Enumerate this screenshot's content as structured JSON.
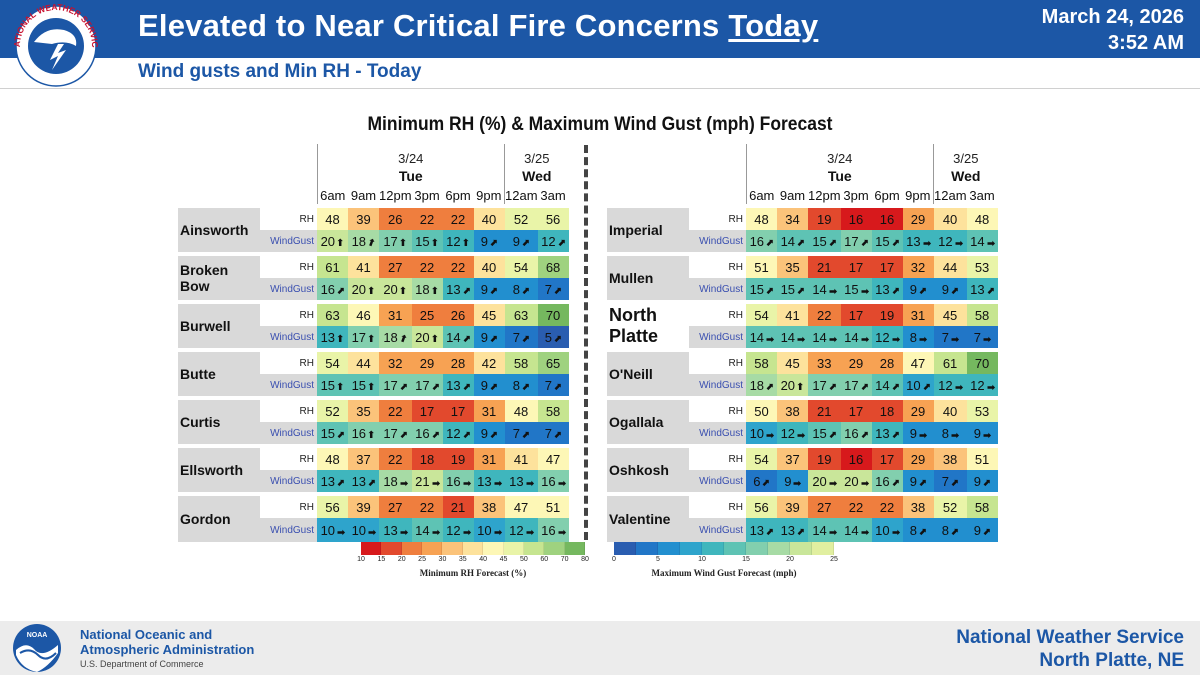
{
  "header": {
    "title_main": "Elevated to Near Critical Fire Concerns",
    "title_emph": "Today",
    "date": "March 24, 2026",
    "time": "3:52 AM",
    "subtitle": "Wind gusts and Min RH - Today",
    "logo_text": "NATIONAL WEATHER SERVICE"
  },
  "chart_title": "Minimum RH (%) & Maximum Wind Gust (mph) Forecast",
  "columns": {
    "date1": "3/24",
    "day1": "Tue",
    "date2": "3/25",
    "day2": "Wed",
    "times": [
      "6am",
      "9am",
      "12pm",
      "3pm",
      "6pm",
      "9pm",
      "12am",
      "3am"
    ]
  },
  "row_labels": {
    "rh": "RH",
    "gust": "WindGust"
  },
  "chart_data": {
    "type": "table",
    "rh_units": "%",
    "gust_units": "mph",
    "left": [
      {
        "station": "Ainsworth",
        "rh": [
          48,
          39,
          26,
          22,
          22,
          40,
          52,
          56
        ],
        "gust": [
          20,
          18,
          17,
          15,
          12,
          9,
          9,
          12
        ],
        "dir": [
          "S",
          "SSW",
          "S",
          "S",
          "S",
          "SW",
          "SW",
          "SW"
        ]
      },
      {
        "station": "Broken Bow",
        "rh": [
          61,
          41,
          27,
          22,
          22,
          40,
          54,
          68
        ],
        "gust": [
          16,
          20,
          20,
          18,
          13,
          9,
          8,
          7
        ],
        "dir": [
          "SW",
          "S",
          "S",
          "S",
          "SW",
          "SW",
          "SW",
          "SW"
        ]
      },
      {
        "station": "Burwell",
        "rh": [
          63,
          46,
          31,
          25,
          26,
          45,
          63,
          70
        ],
        "gust": [
          13,
          17,
          18,
          20,
          14,
          9,
          7,
          5
        ],
        "dir": [
          "S",
          "S",
          "SSW",
          "S",
          "SW",
          "SW",
          "SW",
          "SW"
        ]
      },
      {
        "station": "Butte",
        "rh": [
          54,
          44,
          32,
          29,
          28,
          42,
          58,
          65
        ],
        "gust": [
          15,
          15,
          17,
          17,
          13,
          9,
          8,
          7
        ],
        "dir": [
          "S",
          "S",
          "SW",
          "SW",
          "SW",
          "SW",
          "SW",
          "SW"
        ]
      },
      {
        "station": "Curtis",
        "rh": [
          52,
          35,
          22,
          17,
          17,
          31,
          48,
          58
        ],
        "gust": [
          15,
          16,
          17,
          16,
          12,
          9,
          7,
          7
        ],
        "dir": [
          "SW",
          "S",
          "SW",
          "SW",
          "SW",
          "SW",
          "SW",
          "SW"
        ]
      },
      {
        "station": "Ellsworth",
        "rh": [
          48,
          37,
          22,
          18,
          19,
          31,
          41,
          47
        ],
        "gust": [
          13,
          13,
          18,
          21,
          16,
          13,
          13,
          16
        ],
        "dir": [
          "SW",
          "SW",
          "W",
          "W",
          "W",
          "W",
          "W",
          "W"
        ]
      },
      {
        "station": "Gordon",
        "rh": [
          56,
          39,
          27,
          22,
          21,
          38,
          47,
          51
        ],
        "gust": [
          10,
          10,
          13,
          14,
          12,
          10,
          12,
          16
        ],
        "dir": [
          "W",
          "W",
          "W",
          "W",
          "W",
          "W",
          "W",
          "W"
        ]
      }
    ],
    "right": [
      {
        "station": "Imperial",
        "rh": [
          48,
          34,
          19,
          16,
          16,
          29,
          40,
          48
        ],
        "gust": [
          16,
          14,
          15,
          17,
          15,
          13,
          12,
          14
        ],
        "dir": [
          "SW",
          "SW",
          "SW",
          "SW",
          "SW",
          "W",
          "W",
          "W"
        ]
      },
      {
        "station": "Mullen",
        "rh": [
          51,
          35,
          21,
          17,
          17,
          32,
          44,
          53
        ],
        "gust": [
          15,
          15,
          14,
          15,
          13,
          9,
          9,
          13
        ],
        "dir": [
          "SW",
          "SW",
          "W",
          "W",
          "SW",
          "SW",
          "SW",
          "SW"
        ]
      },
      {
        "station": "North Platte",
        "rh": [
          54,
          41,
          22,
          17,
          19,
          31,
          45,
          58
        ],
        "gust": [
          14,
          14,
          14,
          14,
          12,
          8,
          7,
          7
        ],
        "dir": [
          "W",
          "W",
          "W",
          "W",
          "W",
          "W",
          "W",
          "W"
        ]
      },
      {
        "station": "O'Neill",
        "rh": [
          58,
          45,
          33,
          29,
          28,
          47,
          61,
          70
        ],
        "gust": [
          18,
          20,
          17,
          17,
          14,
          10,
          12,
          12
        ],
        "dir": [
          "SW",
          "S",
          "SW",
          "SW",
          "SW",
          "SW",
          "W",
          "W"
        ]
      },
      {
        "station": "Ogallala",
        "rh": [
          50,
          38,
          21,
          17,
          18,
          29,
          40,
          53
        ],
        "gust": [
          10,
          12,
          15,
          16,
          13,
          9,
          8,
          9
        ],
        "dir": [
          "W",
          "W",
          "SW",
          "SW",
          "SW",
          "W",
          "W",
          "W"
        ]
      },
      {
        "station": "Oshkosh",
        "rh": [
          54,
          37,
          19,
          16,
          17,
          29,
          38,
          51
        ],
        "gust": [
          6,
          9,
          20,
          20,
          16,
          9,
          7,
          9
        ],
        "dir": [
          "SW",
          "W",
          "W",
          "W",
          "SW",
          "SW",
          "SW",
          "SW"
        ]
      },
      {
        "station": "Valentine",
        "rh": [
          56,
          39,
          27,
          22,
          22,
          38,
          52,
          58
        ],
        "gust": [
          13,
          13,
          14,
          14,
          10,
          8,
          8,
          9
        ],
        "dir": [
          "SW",
          "SW",
          "W",
          "W",
          "W",
          "SW",
          "SW",
          "SW"
        ]
      }
    ],
    "rh_legend": {
      "ticks": [
        "10",
        "15",
        "20",
        "25",
        "30",
        "35",
        "40",
        "45",
        "50",
        "60",
        "70",
        "80"
      ],
      "label": "Minimum RH Forecast (%)",
      "colors": [
        "#d7191c",
        "#e2492d",
        "#ef7e3e",
        "#f7a253",
        "#fbc37a",
        "#fde29c",
        "#fdf7b6",
        "#e9f4a8",
        "#c6e590",
        "#9fd27f",
        "#75b85f"
      ]
    },
    "gust_legend": {
      "ticks": [
        "0",
        "5",
        "10",
        "15",
        "20",
        "25"
      ],
      "label": "Maximum Wind Gust Forecast (mph)",
      "colors": [
        "#2a5db0",
        "#2176c7",
        "#228fcf",
        "#2ea4cc",
        "#3fb6bd",
        "#5ec3b4",
        "#82cfae",
        "#a7dba5",
        "#c9e69a",
        "#e1efa0"
      ]
    }
  },
  "footer": {
    "noaa_line1": "National Oceanic and",
    "noaa_line2": "Atmospheric Administration",
    "noaa_dept": "U.S. Department of Commerce",
    "noaa_logo_text": "NOAA",
    "nws_line1": "National Weather Service",
    "nws_line2": "North Platte, NE"
  }
}
